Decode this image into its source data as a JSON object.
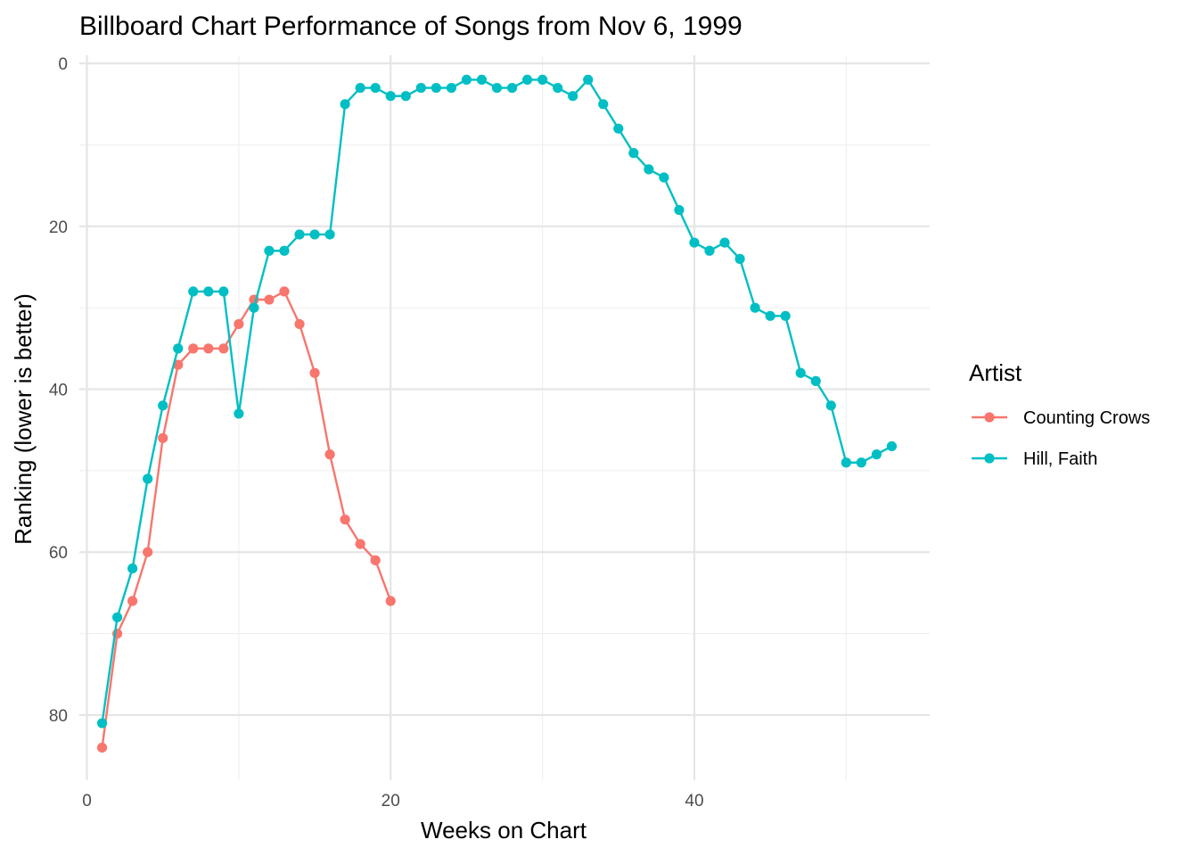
{
  "chart_data": {
    "type": "line",
    "title": "Billboard Chart Performance of Songs from Nov 6, 1999",
    "xlabel": "Weeks on Chart",
    "ylabel": "Ranking (lower is better)",
    "x_ticks": [
      0,
      20,
      40
    ],
    "y_ticks": [
      0,
      20,
      40,
      60,
      80
    ],
    "xlim": [
      -0.5,
      55.5
    ],
    "ylim": [
      -1,
      88
    ],
    "y_reversed": true,
    "grid": true,
    "markers": true,
    "legend": {
      "title": "Artist",
      "position": "right"
    },
    "series": [
      {
        "name": "Counting Crows",
        "color": "#F8766D",
        "x": [
          1,
          2,
          3,
          4,
          5,
          6,
          7,
          8,
          9,
          10,
          11,
          12,
          13,
          14,
          15,
          16,
          17,
          18,
          19,
          20
        ],
        "y": [
          84,
          70,
          66,
          60,
          46,
          37,
          35,
          35,
          35,
          32,
          29,
          29,
          28,
          32,
          38,
          48,
          56,
          59,
          61,
          66
        ]
      },
      {
        "name": "Hill, Faith",
        "color": "#00BFC4",
        "x": [
          1,
          2,
          3,
          4,
          5,
          6,
          7,
          8,
          9,
          10,
          11,
          12,
          13,
          14,
          15,
          16,
          17,
          18,
          19,
          20,
          21,
          22,
          23,
          24,
          25,
          26,
          27,
          28,
          29,
          30,
          31,
          32,
          33,
          34,
          35,
          36,
          37,
          38,
          39,
          40,
          41,
          42,
          43,
          44,
          45,
          46,
          47,
          48,
          49,
          50,
          51,
          52,
          53
        ],
        "y": [
          81,
          68,
          62,
          51,
          42,
          35,
          28,
          28,
          28,
          43,
          30,
          23,
          23,
          21,
          21,
          21,
          5,
          3,
          3,
          4,
          4,
          3,
          3,
          3,
          2,
          2,
          3,
          3,
          2,
          2,
          3,
          4,
          2,
          5,
          8,
          11,
          13,
          14,
          18,
          22,
          23,
          22,
          24,
          30,
          31,
          31,
          38,
          39,
          42,
          49,
          49,
          48,
          47
        ]
      }
    ]
  }
}
